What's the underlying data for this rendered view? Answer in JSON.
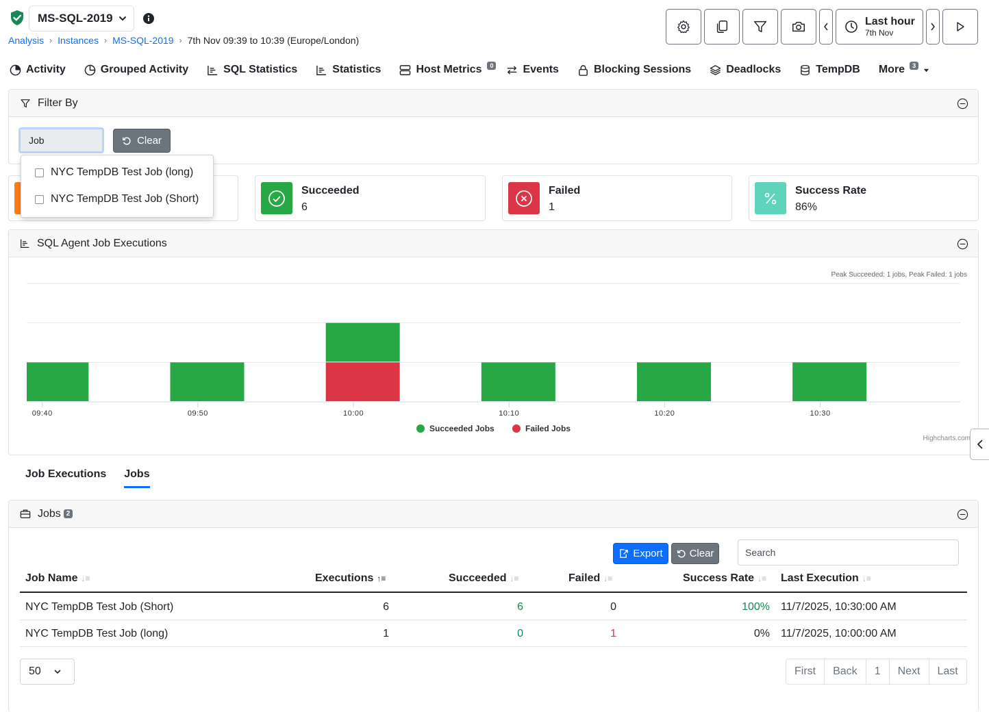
{
  "header": {
    "instance": "MS-SQL-2019",
    "breadcrumb": {
      "analysis": "Analysis",
      "instances": "Instances",
      "instance": "MS-SQL-2019",
      "range": "7th Nov 09:39 to 10:39 (Europe/London)"
    },
    "time": {
      "label": "Last hour",
      "date": "7th Nov"
    }
  },
  "nav": {
    "activity": "Activity",
    "grouped": "Grouped Activity",
    "sqlstats": "SQL Statistics",
    "stats": "Statistics",
    "host": "Host Metrics",
    "host_badge": "0",
    "events": "Events",
    "blocking": "Blocking Sessions",
    "deadlocks": "Deadlocks",
    "tempdb": "TempDB",
    "more": "More",
    "more_badge": "3"
  },
  "filter": {
    "title": "Filter By",
    "input_value": "Job",
    "clear_label": "Clear",
    "options": [
      "NYC TempDB Test Job (long)",
      "NYC TempDB Test Job (Short)"
    ]
  },
  "stats": {
    "succeeded_label": "Succeeded",
    "succeeded_value": "6",
    "failed_label": "Failed",
    "failed_value": "1",
    "rate_label": "Success Rate",
    "rate_value": "86%"
  },
  "chart_panel": {
    "title": "SQL Agent Job Executions"
  },
  "chart_data": {
    "type": "bar",
    "stacked": true,
    "subtitle": "Peak Succeeded: 1 jobs, Peak Failed: 1 jobs",
    "x_ticks": [
      "09:40",
      "09:50",
      "10:00",
      "10:10",
      "10:20",
      "10:30"
    ],
    "categories": [
      "09:40",
      "09:50",
      "10:00",
      "10:10",
      "10:20",
      "10:30"
    ],
    "series": [
      {
        "name": "Succeeded Jobs",
        "color": "#28a745",
        "values": [
          1,
          1,
          1,
          1,
          1,
          1
        ]
      },
      {
        "name": "Failed Jobs",
        "color": "#dc3545",
        "values": [
          0,
          0,
          1,
          0,
          0,
          0
        ]
      }
    ],
    "ylim": [
      0,
      3
    ],
    "legend": "bottom-center",
    "credits": "Highcharts.com"
  },
  "tabs": {
    "executions": "Job Executions",
    "jobs": "Jobs"
  },
  "jobs_panel": {
    "title": "Jobs",
    "count": "2"
  },
  "toolbar": {
    "export": "Export",
    "clear": "Clear",
    "search_placeholder": "Search"
  },
  "table": {
    "headers": {
      "name": "Job Name",
      "executions": "Executions",
      "succeeded": "Succeeded",
      "failed": "Failed",
      "rate": "Success Rate",
      "last": "Last Execution"
    },
    "rows": [
      {
        "name": "NYC TempDB Test Job (Short)",
        "executions": "6",
        "succeeded": "6",
        "failed": "0",
        "rate": "100%",
        "last": "11/7/2025, 10:30:00 AM"
      },
      {
        "name": "NYC TempDB Test Job (long)",
        "executions": "1",
        "succeeded": "0",
        "failed": "1",
        "rate": "0%",
        "last": "11/7/2025, 10:00:00 AM"
      }
    ]
  },
  "pagination": {
    "per_page": "50",
    "first": "First",
    "back": "Back",
    "page": "1",
    "next": "Next",
    "last": "Last"
  },
  "colors": {
    "accent": "#0d6efd",
    "success": "#28a745",
    "danger": "#dc3545",
    "teal": "#5fd3bc",
    "orange": "#fd7e14"
  }
}
